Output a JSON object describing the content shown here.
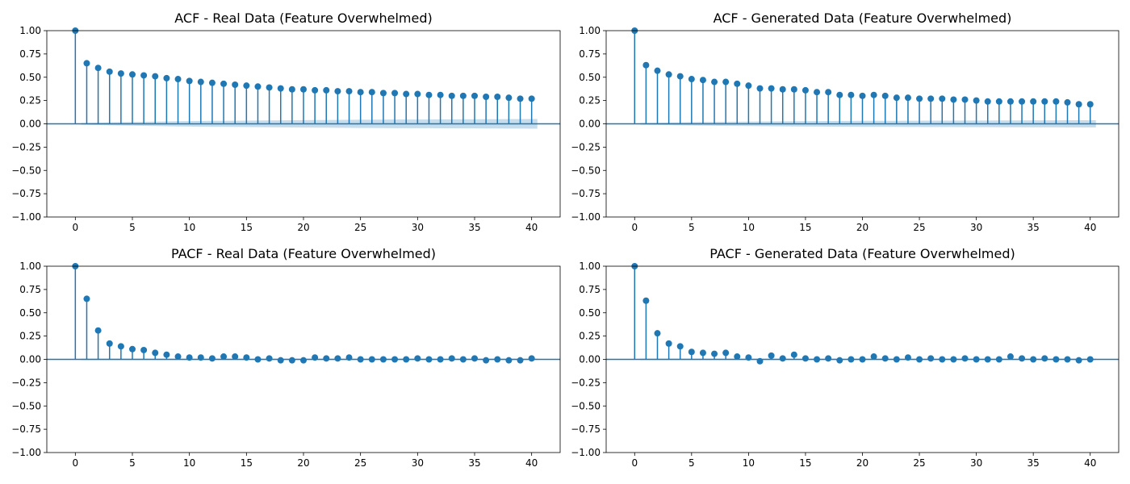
{
  "style": {
    "stem_color": "#1f77b4",
    "band_color": "#1f77b4",
    "axis_color": "#000000"
  },
  "chart_data": [
    {
      "type": "stem",
      "title": "ACF - Real Data (Feature Overwhelmed)",
      "xlabel": "",
      "ylabel": "",
      "xlim": [
        -2.5,
        42.5
      ],
      "ylim": [
        -1.0,
        1.0
      ],
      "xticks": [
        0,
        5,
        10,
        15,
        20,
        25,
        30,
        35,
        40
      ],
      "yticks": [
        -1.0,
        -0.75,
        -0.5,
        -0.25,
        0.0,
        0.25,
        0.5,
        0.75,
        1.0
      ],
      "ytick_labels": [
        "−1.00",
        "−0.75",
        "−0.50",
        "−0.25",
        "0.00",
        "0.25",
        "0.50",
        "0.75",
        "1.00"
      ],
      "grid": false,
      "lags": [
        0,
        1,
        2,
        3,
        4,
        5,
        6,
        7,
        8,
        9,
        10,
        11,
        12,
        13,
        14,
        15,
        16,
        17,
        18,
        19,
        20,
        21,
        22,
        23,
        24,
        25,
        26,
        27,
        28,
        29,
        30,
        31,
        32,
        33,
        34,
        35,
        36,
        37,
        38,
        39,
        40
      ],
      "values": [
        1.0,
        0.65,
        0.6,
        0.56,
        0.54,
        0.53,
        0.52,
        0.51,
        0.49,
        0.48,
        0.46,
        0.45,
        0.44,
        0.43,
        0.42,
        0.41,
        0.4,
        0.39,
        0.38,
        0.37,
        0.37,
        0.36,
        0.36,
        0.35,
        0.35,
        0.34,
        0.34,
        0.33,
        0.33,
        0.32,
        0.32,
        0.31,
        0.31,
        0.3,
        0.3,
        0.3,
        0.29,
        0.29,
        0.28,
        0.27,
        0.27
      ],
      "confidence_band": [
        0.0,
        0.01,
        0.013,
        0.016,
        0.018,
        0.02,
        0.022,
        0.024,
        0.026,
        0.028,
        0.029,
        0.031,
        0.032,
        0.033,
        0.034,
        0.035,
        0.036,
        0.037,
        0.038,
        0.039,
        0.04,
        0.041,
        0.041,
        0.042,
        0.043,
        0.044,
        0.044,
        0.045,
        0.046,
        0.046,
        0.047,
        0.047,
        0.048,
        0.048,
        0.049,
        0.049,
        0.05,
        0.05,
        0.051,
        0.051,
        0.052
      ]
    },
    {
      "type": "stem",
      "title": "ACF - Generated Data (Feature Overwhelmed)",
      "xlabel": "",
      "ylabel": "",
      "xlim": [
        -2.5,
        42.5
      ],
      "ylim": [
        -1.0,
        1.0
      ],
      "xticks": [
        0,
        5,
        10,
        15,
        20,
        25,
        30,
        35,
        40
      ],
      "yticks": [
        -1.0,
        -0.75,
        -0.5,
        -0.25,
        0.0,
        0.25,
        0.5,
        0.75,
        1.0
      ],
      "ytick_labels": [
        "−1.00",
        "−0.75",
        "−0.50",
        "−0.25",
        "0.00",
        "0.25",
        "0.50",
        "0.75",
        "1.00"
      ],
      "grid": false,
      "lags": [
        0,
        1,
        2,
        3,
        4,
        5,
        6,
        7,
        8,
        9,
        10,
        11,
        12,
        13,
        14,
        15,
        16,
        17,
        18,
        19,
        20,
        21,
        22,
        23,
        24,
        25,
        26,
        27,
        28,
        29,
        30,
        31,
        32,
        33,
        34,
        35,
        36,
        37,
        38,
        39,
        40
      ],
      "values": [
        1.0,
        0.63,
        0.57,
        0.53,
        0.51,
        0.48,
        0.47,
        0.45,
        0.45,
        0.43,
        0.41,
        0.38,
        0.38,
        0.37,
        0.37,
        0.36,
        0.34,
        0.34,
        0.31,
        0.31,
        0.3,
        0.31,
        0.3,
        0.28,
        0.28,
        0.27,
        0.27,
        0.27,
        0.26,
        0.26,
        0.25,
        0.24,
        0.24,
        0.24,
        0.24,
        0.24,
        0.24,
        0.24,
        0.23,
        0.21,
        0.21
      ],
      "confidence_band": [
        0.0,
        0.01,
        0.012,
        0.014,
        0.016,
        0.018,
        0.019,
        0.021,
        0.022,
        0.023,
        0.024,
        0.025,
        0.026,
        0.027,
        0.028,
        0.029,
        0.029,
        0.03,
        0.031,
        0.031,
        0.032,
        0.032,
        0.033,
        0.033,
        0.034,
        0.034,
        0.035,
        0.035,
        0.035,
        0.036,
        0.036,
        0.036,
        0.037,
        0.037,
        0.037,
        0.038,
        0.038,
        0.038,
        0.039,
        0.039,
        0.039
      ]
    },
    {
      "type": "stem",
      "title": "PACF - Real Data (Feature Overwhelmed)",
      "xlabel": "",
      "ylabel": "",
      "xlim": [
        -2.5,
        42.5
      ],
      "ylim": [
        -1.0,
        1.0
      ],
      "xticks": [
        0,
        5,
        10,
        15,
        20,
        25,
        30,
        35,
        40
      ],
      "yticks": [
        -1.0,
        -0.75,
        -0.5,
        -0.25,
        0.0,
        0.25,
        0.5,
        0.75,
        1.0
      ],
      "ytick_labels": [
        "−1.00",
        "−0.75",
        "−0.50",
        "−0.25",
        "0.00",
        "0.25",
        "0.50",
        "0.75",
        "1.00"
      ],
      "grid": false,
      "lags": [
        0,
        1,
        2,
        3,
        4,
        5,
        6,
        7,
        8,
        9,
        10,
        11,
        12,
        13,
        14,
        15,
        16,
        17,
        18,
        19,
        20,
        21,
        22,
        23,
        24,
        25,
        26,
        27,
        28,
        29,
        30,
        31,
        32,
        33,
        34,
        35,
        36,
        37,
        38,
        39,
        40
      ],
      "values": [
        1.0,
        0.65,
        0.31,
        0.17,
        0.14,
        0.11,
        0.1,
        0.07,
        0.05,
        0.03,
        0.02,
        0.02,
        0.01,
        0.03,
        0.03,
        0.02,
        0.0,
        0.01,
        -0.01,
        -0.01,
        -0.01,
        0.02,
        0.01,
        0.01,
        0.02,
        0.0,
        0.0,
        0.0,
        0.0,
        0.0,
        0.01,
        0.0,
        0.0,
        0.01,
        0.0,
        0.01,
        -0.01,
        0.0,
        -0.01,
        -0.01,
        0.01
      ],
      "confidence_band": [
        0.0,
        0.009,
        0.009,
        0.009,
        0.009,
        0.009,
        0.009,
        0.009,
        0.009,
        0.009,
        0.009,
        0.009,
        0.009,
        0.009,
        0.009,
        0.009,
        0.009,
        0.009,
        0.009,
        0.009,
        0.009,
        0.009,
        0.009,
        0.009,
        0.009,
        0.009,
        0.009,
        0.009,
        0.009,
        0.009,
        0.009,
        0.009,
        0.009,
        0.009,
        0.009,
        0.009,
        0.009,
        0.009,
        0.009,
        0.009,
        0.009
      ]
    },
    {
      "type": "stem",
      "title": "PACF - Generated Data (Feature Overwhelmed)",
      "xlabel": "",
      "ylabel": "",
      "xlim": [
        -2.5,
        42.5
      ],
      "ylim": [
        -1.0,
        1.0
      ],
      "xticks": [
        0,
        5,
        10,
        15,
        20,
        25,
        30,
        35,
        40
      ],
      "yticks": [
        -1.0,
        -0.75,
        -0.5,
        -0.25,
        0.0,
        0.25,
        0.5,
        0.75,
        1.0
      ],
      "ytick_labels": [
        "−1.00",
        "−0.75",
        "−0.50",
        "−0.25",
        "0.00",
        "0.25",
        "0.50",
        "0.75",
        "1.00"
      ],
      "grid": false,
      "lags": [
        0,
        1,
        2,
        3,
        4,
        5,
        6,
        7,
        8,
        9,
        10,
        11,
        12,
        13,
        14,
        15,
        16,
        17,
        18,
        19,
        20,
        21,
        22,
        23,
        24,
        25,
        26,
        27,
        28,
        29,
        30,
        31,
        32,
        33,
        34,
        35,
        36,
        37,
        38,
        39,
        40
      ],
      "values": [
        1.0,
        0.63,
        0.28,
        0.17,
        0.14,
        0.08,
        0.07,
        0.06,
        0.07,
        0.03,
        0.02,
        -0.02,
        0.04,
        0.01,
        0.05,
        0.01,
        0.0,
        0.01,
        -0.01,
        0.0,
        0.0,
        0.03,
        0.01,
        0.0,
        0.02,
        0.0,
        0.01,
        0.0,
        0.0,
        0.01,
        0.0,
        0.0,
        0.0,
        0.03,
        0.01,
        0.0,
        0.01,
        0.0,
        0.0,
        -0.01,
        0.0
      ],
      "confidence_band": [
        0.0,
        0.009,
        0.009,
        0.009,
        0.009,
        0.009,
        0.009,
        0.009,
        0.009,
        0.009,
        0.009,
        0.009,
        0.009,
        0.009,
        0.009,
        0.009,
        0.009,
        0.009,
        0.009,
        0.009,
        0.009,
        0.009,
        0.009,
        0.009,
        0.009,
        0.009,
        0.009,
        0.009,
        0.009,
        0.009,
        0.009,
        0.009,
        0.009,
        0.009,
        0.009,
        0.009,
        0.009,
        0.009,
        0.009,
        0.009,
        0.009
      ]
    }
  ]
}
